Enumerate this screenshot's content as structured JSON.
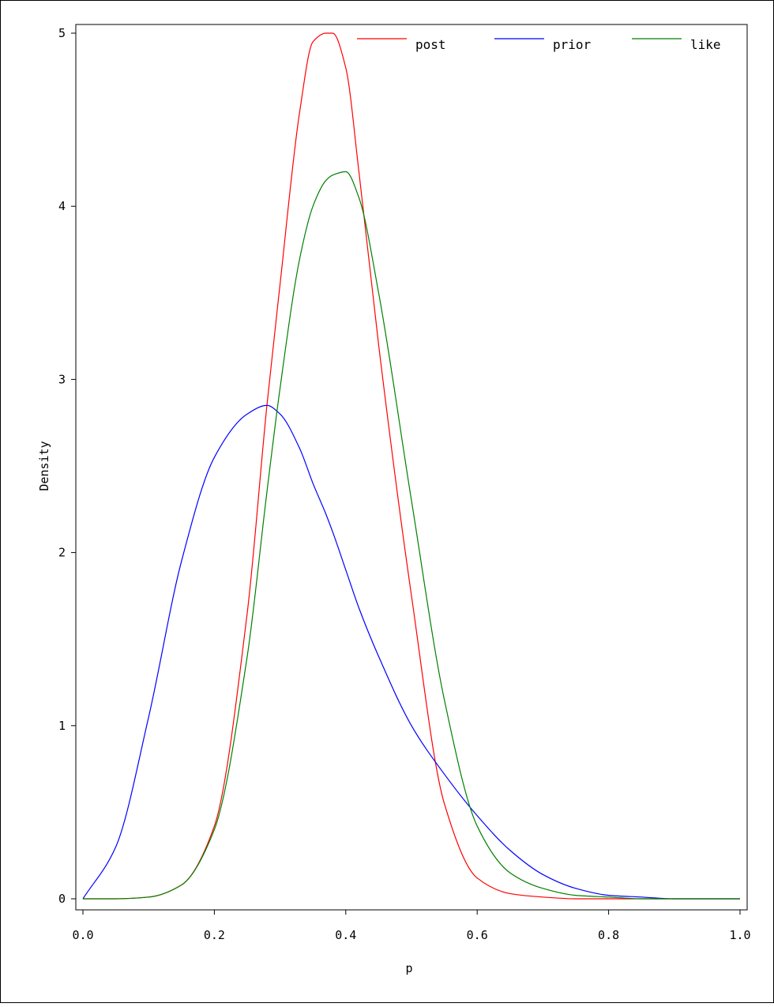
{
  "chart_data": {
    "type": "line",
    "title": "",
    "xlabel": "p",
    "ylabel": "Density",
    "xlim": [
      0,
      1
    ],
    "ylim": [
      0,
      5
    ],
    "grid": false,
    "legend_position": "top-right",
    "x_ticks": [
      "0.0",
      "0.2",
      "0.4",
      "0.6",
      "0.8",
      "1.0"
    ],
    "y_ticks": [
      "0",
      "1",
      "2",
      "3",
      "4",
      "5"
    ],
    "x": [
      0.0,
      0.05,
      0.1,
      0.15,
      0.2,
      0.25,
      0.28,
      0.3,
      0.33,
      0.35,
      0.37,
      0.38,
      0.4,
      0.42,
      0.45,
      0.5,
      0.55,
      0.6,
      0.65,
      0.7,
      0.75,
      0.8,
      0.85,
      0.9,
      1.0
    ],
    "series": [
      {
        "name": "post",
        "color": "#ff0000",
        "values": [
          0,
          0,
          0.01,
          0.08,
          0.42,
          1.65,
          2.85,
          3.55,
          4.55,
          4.95,
          5.0,
          5.0,
          4.8,
          4.2,
          3.2,
          1.75,
          0.55,
          0.12,
          0.03,
          0.01,
          0,
          0,
          0,
          0,
          0
        ]
      },
      {
        "name": "prior",
        "color": "#0000ff",
        "values": [
          0,
          0.3,
          1.05,
          1.95,
          2.55,
          2.8,
          2.85,
          2.8,
          2.6,
          2.4,
          2.22,
          2.12,
          1.9,
          1.68,
          1.4,
          1.0,
          0.72,
          0.48,
          0.28,
          0.14,
          0.06,
          0.02,
          0.01,
          0,
          0
        ]
      },
      {
        "name": "like",
        "color": "#008000",
        "values": [
          0,
          0,
          0.01,
          0.08,
          0.4,
          1.4,
          2.35,
          2.95,
          3.7,
          4.0,
          4.15,
          4.18,
          4.2,
          4.05,
          3.5,
          2.3,
          1.15,
          0.42,
          0.15,
          0.06,
          0.02,
          0.01,
          0,
          0,
          0
        ]
      }
    ]
  }
}
